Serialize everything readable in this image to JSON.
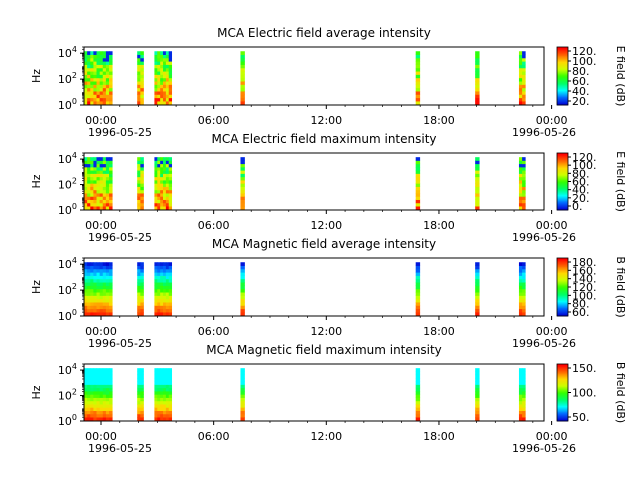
{
  "figure": {
    "x_tick_labels": [
      "00:00",
      "06:00",
      "12:00",
      "18:00",
      "00:00"
    ],
    "x_date_labels": [
      "1996-05-25",
      "1996-05-26"
    ],
    "y_tick_labels": [
      "10^0",
      "10^2",
      "10^4"
    ]
  },
  "chart_data": [
    {
      "type": "heatmap",
      "title": "MCA  Electric field average intensity",
      "ylabel": "Hz",
      "y_scale": "log",
      "ylim": [
        1,
        30000
      ],
      "xlim": [
        "1996-05-25T00:00",
        "1996-05-26T00:30"
      ],
      "colorbar_label": "E field (dB)",
      "colorbar_ticks": [
        "20.",
        "40.",
        "60.",
        "80.",
        "100.",
        "120."
      ],
      "colormap": [
        "#0000d0",
        "#0066ff",
        "#00ffff",
        "#00ff66",
        "#33ff00",
        "#ccff00",
        "#ffd700",
        "#ff6600",
        "#ff0000"
      ],
      "data_intervals": [
        {
          "start": "1996-05-25T00:00",
          "end": "1996-05-25T01:30"
        },
        {
          "start": "1996-05-25T02:50",
          "end": "1996-05-25T03:10"
        },
        {
          "start": "1996-05-25T03:45",
          "end": "1996-05-25T04:40"
        },
        {
          "start": "1996-05-25T08:20",
          "end": "1996-05-25T08:30"
        },
        {
          "start": "1996-05-25T17:40",
          "end": "1996-05-25T17:50"
        },
        {
          "start": "1996-05-25T20:50",
          "end": "1996-05-25T21:00"
        },
        {
          "start": "1996-05-25T23:10",
          "end": "1996-05-25T23:30"
        }
      ]
    },
    {
      "type": "heatmap",
      "title": "MCA  Electric field maximum intensity",
      "ylabel": "Hz",
      "y_scale": "log",
      "ylim": [
        1,
        30000
      ],
      "xlim": [
        "1996-05-25T00:00",
        "1996-05-26T00:30"
      ],
      "colorbar_label": "E field (dB)",
      "colorbar_ticks": [
        "0.",
        "20.",
        "40.",
        "60.",
        "80.",
        "100.",
        "120."
      ],
      "colormap": [
        "#0000d0",
        "#0066ff",
        "#00ffff",
        "#00ff66",
        "#33ff00",
        "#ccff00",
        "#ffd700",
        "#ff6600",
        "#ff0000"
      ],
      "data_intervals": [
        {
          "start": "1996-05-25T00:00",
          "end": "1996-05-25T01:30"
        },
        {
          "start": "1996-05-25T02:50",
          "end": "1996-05-25T03:10"
        },
        {
          "start": "1996-05-25T03:45",
          "end": "1996-05-25T04:40"
        },
        {
          "start": "1996-05-25T08:20",
          "end": "1996-05-25T08:30"
        },
        {
          "start": "1996-05-25T17:40",
          "end": "1996-05-25T17:50"
        },
        {
          "start": "1996-05-25T20:50",
          "end": "1996-05-25T21:00"
        },
        {
          "start": "1996-05-25T23:10",
          "end": "1996-05-25T23:30"
        }
      ]
    },
    {
      "type": "heatmap",
      "title": "MCA  Magnetic field average intensity",
      "ylabel": "Hz",
      "y_scale": "log",
      "ylim": [
        1,
        30000
      ],
      "xlim": [
        "1996-05-25T00:00",
        "1996-05-26T00:30"
      ],
      "colorbar_label": "B field (dB)",
      "colorbar_ticks": [
        "60.",
        "80.",
        "100.",
        "120.",
        "140.",
        "160.",
        "180."
      ],
      "colormap": [
        "#0000d0",
        "#0066ff",
        "#00ffff",
        "#00ff66",
        "#33ff00",
        "#ccff00",
        "#ffd700",
        "#ff6600",
        "#ff0000"
      ],
      "data_intervals": [
        {
          "start": "1996-05-25T00:00",
          "end": "1996-05-25T01:30"
        },
        {
          "start": "1996-05-25T02:50",
          "end": "1996-05-25T03:10"
        },
        {
          "start": "1996-05-25T03:45",
          "end": "1996-05-25T04:40"
        },
        {
          "start": "1996-05-25T08:20",
          "end": "1996-05-25T08:30"
        },
        {
          "start": "1996-05-25T17:40",
          "end": "1996-05-25T17:50"
        },
        {
          "start": "1996-05-25T20:50",
          "end": "1996-05-25T21:00"
        },
        {
          "start": "1996-05-25T23:10",
          "end": "1996-05-25T23:30"
        }
      ]
    },
    {
      "type": "heatmap",
      "title": "MCA  Magnetic field maximum intensity",
      "ylabel": "Hz",
      "y_scale": "log",
      "ylim": [
        1,
        30000
      ],
      "xlim": [
        "1996-05-25T00:00",
        "1996-05-26T00:30"
      ],
      "colorbar_label": "B field (dB)",
      "colorbar_ticks": [
        "50.",
        "100.",
        "150."
      ],
      "colormap": [
        "#0000d0",
        "#0066ff",
        "#00ffff",
        "#00ff66",
        "#33ff00",
        "#ccff00",
        "#ffd700",
        "#ff6600",
        "#ff0000"
      ],
      "data_intervals": [
        {
          "start": "1996-05-25T00:00",
          "end": "1996-05-25T01:30"
        },
        {
          "start": "1996-05-25T02:50",
          "end": "1996-05-25T03:10"
        },
        {
          "start": "1996-05-25T03:45",
          "end": "1996-05-25T04:40"
        },
        {
          "start": "1996-05-25T08:20",
          "end": "1996-05-25T08:30"
        },
        {
          "start": "1996-05-25T17:40",
          "end": "1996-05-25T17:50"
        },
        {
          "start": "1996-05-25T20:50",
          "end": "1996-05-25T21:00"
        },
        {
          "start": "1996-05-25T23:10",
          "end": "1996-05-25T23:30"
        }
      ]
    }
  ]
}
